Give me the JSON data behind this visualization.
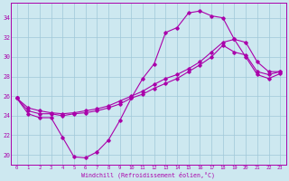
{
  "xlabel": "Windchill (Refroidissement éolien,°C)",
  "bg_color": "#cde8f0",
  "line_color": "#aa00aa",
  "grid_color": "#a0c8d8",
  "xlim": [
    -0.5,
    23.5
  ],
  "ylim": [
    19.0,
    35.5
  ],
  "yticks": [
    20,
    22,
    24,
    26,
    28,
    30,
    32,
    34
  ],
  "xticks": [
    0,
    1,
    2,
    3,
    4,
    5,
    6,
    7,
    8,
    9,
    10,
    11,
    12,
    13,
    14,
    15,
    16,
    17,
    18,
    19,
    20,
    21,
    22,
    23
  ],
  "series1_x": [
    0,
    1,
    2,
    3,
    4,
    5,
    6,
    7,
    8,
    9,
    10,
    11,
    12,
    13,
    14,
    15,
    16,
    17,
    18,
    19,
    20,
    21,
    22,
    23
  ],
  "series1_y": [
    25.8,
    24.2,
    23.8,
    23.8,
    21.8,
    19.8,
    19.7,
    20.3,
    21.5,
    23.5,
    25.8,
    27.8,
    29.3,
    32.5,
    33.0,
    34.5,
    34.7,
    34.2,
    34.0,
    31.8,
    30.0,
    28.2,
    27.8,
    28.3
  ],
  "series2_x": [
    0,
    1,
    2,
    3,
    4,
    5,
    6,
    7,
    8,
    9,
    10,
    11,
    12,
    13,
    14,
    15,
    16,
    17,
    18,
    19,
    20,
    21,
    22,
    23
  ],
  "series2_y": [
    25.8,
    24.5,
    24.2,
    24.2,
    24.0,
    24.2,
    24.3,
    24.5,
    24.8,
    25.2,
    25.8,
    26.2,
    26.8,
    27.3,
    27.8,
    28.5,
    29.2,
    30.0,
    31.2,
    30.5,
    30.2,
    28.5,
    28.2,
    28.5
  ],
  "series3_x": [
    0,
    1,
    2,
    3,
    4,
    5,
    6,
    7,
    8,
    9,
    10,
    11,
    12,
    13,
    14,
    15,
    16,
    17,
    18,
    19,
    20,
    21,
    22,
    23
  ],
  "series3_y": [
    25.8,
    24.8,
    24.5,
    24.3,
    24.2,
    24.3,
    24.5,
    24.7,
    25.0,
    25.5,
    26.0,
    26.5,
    27.2,
    27.8,
    28.2,
    28.8,
    29.5,
    30.5,
    31.5,
    31.8,
    31.5,
    29.5,
    28.5,
    28.5
  ]
}
